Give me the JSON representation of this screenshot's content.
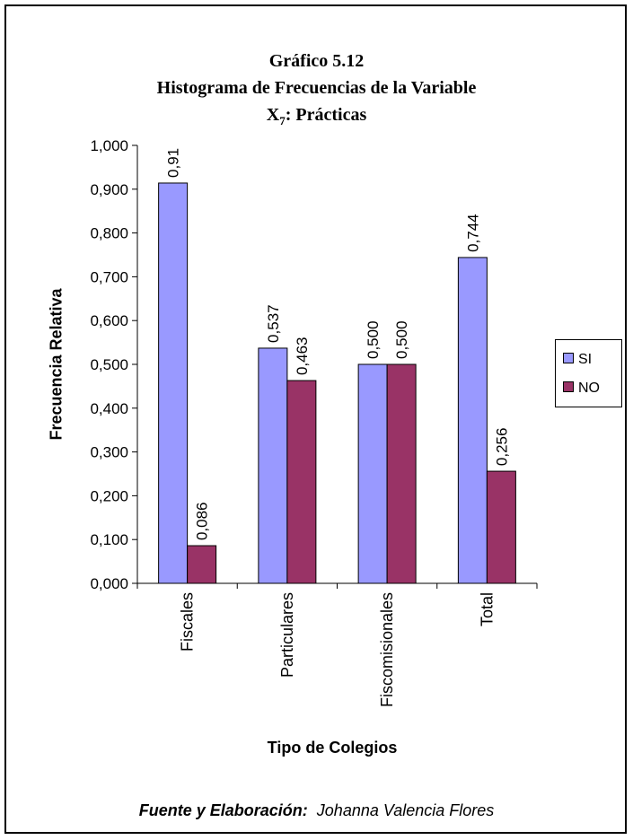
{
  "title": {
    "line1": "Gráfico 5.12",
    "line2": "Histograma de Frecuencias de la Variable",
    "line3_main": "X",
    "line3_sub": "7",
    "line3_rest": ": Prácticas"
  },
  "source": {
    "label": "Fuente y Elaboración:",
    "author": "Johanna Valencia Flores"
  },
  "colors": {
    "SI": "#9999ff",
    "NO": "#993366"
  },
  "chart_data": {
    "type": "bar",
    "title": "Gráfico 5.12 Histograma de Frecuencias de la Variable X7: Prácticas",
    "xlabel": "Tipo de Colegios",
    "ylabel": "Frecuencia Relativa",
    "ylim": [
      0,
      1
    ],
    "yticks": [
      "0,000",
      "0,100",
      "0,200",
      "0,300",
      "0,400",
      "0,500",
      "0,600",
      "0,700",
      "0,800",
      "0,900",
      "1,000"
    ],
    "categories": [
      "Fiscales",
      "Particulares",
      "Fiscomisionales",
      "Total"
    ],
    "series": [
      {
        "name": "SI",
        "values": [
          0.914,
          0.537,
          0.5,
          0.744
        ],
        "labels": [
          "0,91",
          "0,537",
          "0,500",
          "0,744"
        ]
      },
      {
        "name": "NO",
        "values": [
          0.086,
          0.463,
          0.5,
          0.256
        ],
        "labels": [
          "0,086",
          "0,463",
          "0,500",
          "0,256"
        ]
      }
    ],
    "legend": "right",
    "grid": false
  }
}
